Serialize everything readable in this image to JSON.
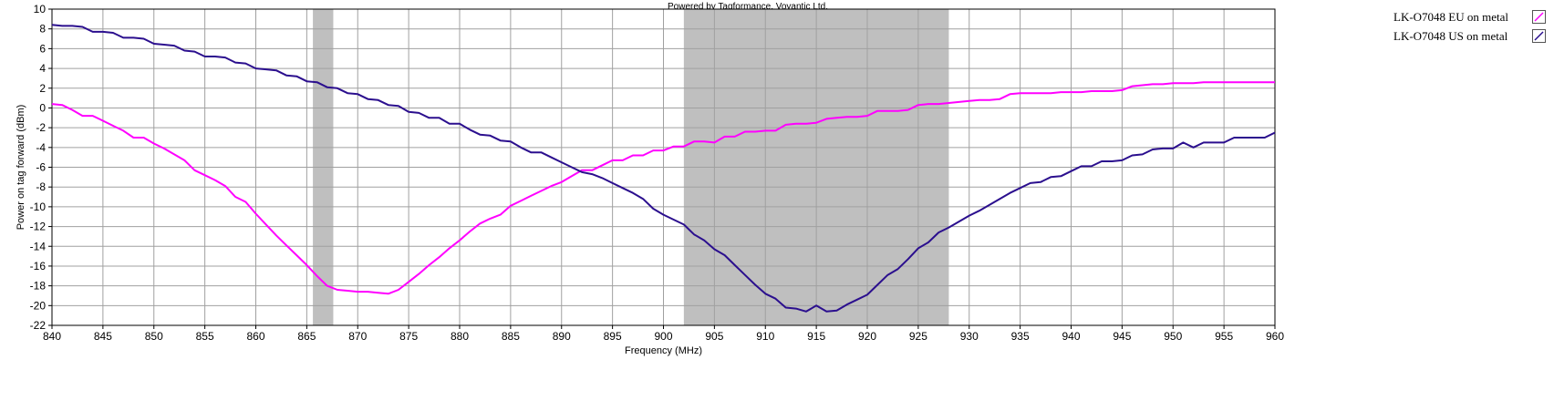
{
  "chart_data": {
    "type": "line",
    "title": "Powered by Tagformance, Voyantic Ltd.",
    "xlabel": "Frequency (MHz)",
    "ylabel": "Power on tag forward (dBm)",
    "xlim": [
      840,
      960
    ],
    "ylim": [
      -22,
      10
    ],
    "x_ticks": [
      840,
      845,
      850,
      855,
      860,
      865,
      870,
      875,
      880,
      885,
      890,
      895,
      900,
      905,
      910,
      915,
      920,
      925,
      930,
      935,
      940,
      945,
      950,
      955,
      960
    ],
    "y_ticks": [
      10,
      8,
      6,
      4,
      2,
      0,
      -2,
      -4,
      -6,
      -8,
      -10,
      -12,
      -14,
      -16,
      -18,
      -20,
      -22
    ],
    "grid": true,
    "legend_position": "right",
    "shaded_bands": [
      {
        "x_start": 865.6,
        "x_end": 867.6,
        "color": "#bfbfbf"
      },
      {
        "x_start": 902,
        "x_end": 928,
        "color": "#bfbfbf"
      }
    ],
    "series": [
      {
        "name": "LK-O7048 EU on metal",
        "color": "#ff00ff",
        "points": [
          [
            840,
            0.4
          ],
          [
            841,
            0.3
          ],
          [
            842,
            -0.2
          ],
          [
            843,
            -0.8
          ],
          [
            844,
            -0.8
          ],
          [
            845,
            -1.3
          ],
          [
            846,
            -1.8
          ],
          [
            847,
            -2.3
          ],
          [
            848,
            -3.0
          ],
          [
            849,
            -3.0
          ],
          [
            850,
            -3.6
          ],
          [
            851,
            -4.1
          ],
          [
            852,
            -4.7
          ],
          [
            853,
            -5.3
          ],
          [
            854,
            -6.3
          ],
          [
            855,
            -6.8
          ],
          [
            856,
            -7.3
          ],
          [
            857,
            -7.9
          ],
          [
            858,
            -9.0
          ],
          [
            859,
            -9.5
          ],
          [
            860,
            -10.7
          ],
          [
            861,
            -11.8
          ],
          [
            862,
            -12.9
          ],
          [
            863,
            -13.9
          ],
          [
            864,
            -14.9
          ],
          [
            865,
            -15.9
          ],
          [
            866,
            -17.0
          ],
          [
            867,
            -18.0
          ],
          [
            868,
            -18.4
          ],
          [
            869,
            -18.5
          ],
          [
            870,
            -18.6
          ],
          [
            871,
            -18.6
          ],
          [
            872,
            -18.7
          ],
          [
            873,
            -18.8
          ],
          [
            874,
            -18.4
          ],
          [
            875,
            -17.6
          ],
          [
            876,
            -16.8
          ],
          [
            877,
            -15.9
          ],
          [
            878,
            -15.1
          ],
          [
            879,
            -14.2
          ],
          [
            880,
            -13.4
          ],
          [
            881,
            -12.5
          ],
          [
            882,
            -11.7
          ],
          [
            883,
            -11.2
          ],
          [
            884,
            -10.8
          ],
          [
            885,
            -9.9
          ],
          [
            886,
            -9.4
          ],
          [
            887,
            -8.9
          ],
          [
            888,
            -8.4
          ],
          [
            889,
            -7.9
          ],
          [
            890,
            -7.5
          ],
          [
            891,
            -6.9
          ],
          [
            892,
            -6.3
          ],
          [
            893,
            -6.3
          ],
          [
            894,
            -5.8
          ],
          [
            895,
            -5.3
          ],
          [
            896,
            -5.3
          ],
          [
            897,
            -4.8
          ],
          [
            898,
            -4.8
          ],
          [
            899,
            -4.3
          ],
          [
            900,
            -4.3
          ],
          [
            901,
            -3.9
          ],
          [
            902,
            -3.9
          ],
          [
            903,
            -3.4
          ],
          [
            904,
            -3.4
          ],
          [
            905,
            -3.5
          ],
          [
            906,
            -2.9
          ],
          [
            907,
            -2.9
          ],
          [
            908,
            -2.4
          ],
          [
            909,
            -2.4
          ],
          [
            910,
            -2.3
          ],
          [
            911,
            -2.3
          ],
          [
            912,
            -1.7
          ],
          [
            913,
            -1.6
          ],
          [
            914,
            -1.6
          ],
          [
            915,
            -1.5
          ],
          [
            916,
            -1.1
          ],
          [
            917,
            -1.0
          ],
          [
            918,
            -0.9
          ],
          [
            919,
            -0.9
          ],
          [
            920,
            -0.8
          ],
          [
            921,
            -0.3
          ],
          [
            922,
            -0.3
          ],
          [
            923,
            -0.3
          ],
          [
            924,
            -0.2
          ],
          [
            925,
            0.3
          ],
          [
            926,
            0.4
          ],
          [
            927,
            0.4
          ],
          [
            928,
            0.5
          ],
          [
            929,
            0.6
          ],
          [
            930,
            0.7
          ],
          [
            931,
            0.8
          ],
          [
            932,
            0.8
          ],
          [
            933,
            0.9
          ],
          [
            934,
            1.4
          ],
          [
            935,
            1.5
          ],
          [
            936,
            1.5
          ],
          [
            937,
            1.5
          ],
          [
            938,
            1.5
          ],
          [
            939,
            1.6
          ],
          [
            940,
            1.6
          ],
          [
            941,
            1.6
          ],
          [
            942,
            1.7
          ],
          [
            943,
            1.7
          ],
          [
            944,
            1.7
          ],
          [
            945,
            1.8
          ],
          [
            946,
            2.2
          ],
          [
            947,
            2.3
          ],
          [
            948,
            2.4
          ],
          [
            949,
            2.4
          ],
          [
            950,
            2.5
          ],
          [
            951,
            2.5
          ],
          [
            952,
            2.5
          ],
          [
            953,
            2.6
          ],
          [
            954,
            2.6
          ],
          [
            955,
            2.6
          ],
          [
            956,
            2.6
          ],
          [
            957,
            2.6
          ],
          [
            958,
            2.6
          ],
          [
            959,
            2.6
          ],
          [
            960,
            2.6
          ]
        ]
      },
      {
        "name": "LK-O7048 US on metal",
        "color": "#2b0f8e",
        "points": [
          [
            840,
            8.4
          ],
          [
            841,
            8.3
          ],
          [
            842,
            8.3
          ],
          [
            843,
            8.2
          ],
          [
            844,
            7.7
          ],
          [
            845,
            7.7
          ],
          [
            846,
            7.6
          ],
          [
            847,
            7.1
          ],
          [
            848,
            7.1
          ],
          [
            849,
            7.0
          ],
          [
            850,
            6.5
          ],
          [
            851,
            6.4
          ],
          [
            852,
            6.3
          ],
          [
            853,
            5.8
          ],
          [
            854,
            5.7
          ],
          [
            855,
            5.2
          ],
          [
            856,
            5.2
          ],
          [
            857,
            5.1
          ],
          [
            858,
            4.6
          ],
          [
            859,
            4.5
          ],
          [
            860,
            4.0
          ],
          [
            861,
            3.9
          ],
          [
            862,
            3.8
          ],
          [
            863,
            3.3
          ],
          [
            864,
            3.2
          ],
          [
            865,
            2.7
          ],
          [
            866,
            2.6
          ],
          [
            867,
            2.1
          ],
          [
            868,
            2.0
          ],
          [
            869,
            1.5
          ],
          [
            870,
            1.4
          ],
          [
            871,
            0.9
          ],
          [
            872,
            0.8
          ],
          [
            873,
            0.3
          ],
          [
            874,
            0.2
          ],
          [
            875,
            -0.4
          ],
          [
            876,
            -0.5
          ],
          [
            877,
            -1.0
          ],
          [
            878,
            -1.0
          ],
          [
            879,
            -1.6
          ],
          [
            880,
            -1.6
          ],
          [
            881,
            -2.2
          ],
          [
            882,
            -2.7
          ],
          [
            883,
            -2.8
          ],
          [
            884,
            -3.3
          ],
          [
            885,
            -3.4
          ],
          [
            886,
            -4.0
          ],
          [
            887,
            -4.5
          ],
          [
            888,
            -4.5
          ],
          [
            889,
            -5.0
          ],
          [
            890,
            -5.5
          ],
          [
            891,
            -6.0
          ],
          [
            892,
            -6.5
          ],
          [
            893,
            -6.7
          ],
          [
            894,
            -7.1
          ],
          [
            895,
            -7.6
          ],
          [
            896,
            -8.1
          ],
          [
            897,
            -8.6
          ],
          [
            898,
            -9.2
          ],
          [
            899,
            -10.2
          ],
          [
            900,
            -10.8
          ],
          [
            901,
            -11.3
          ],
          [
            902,
            -11.8
          ],
          [
            903,
            -12.8
          ],
          [
            904,
            -13.4
          ],
          [
            905,
            -14.3
          ],
          [
            906,
            -14.9
          ],
          [
            907,
            -15.9
          ],
          [
            908,
            -16.9
          ],
          [
            909,
            -17.9
          ],
          [
            910,
            -18.8
          ],
          [
            911,
            -19.3
          ],
          [
            912,
            -20.2
          ],
          [
            913,
            -20.3
          ],
          [
            914,
            -20.6
          ],
          [
            915,
            -20.0
          ],
          [
            916,
            -20.6
          ],
          [
            917,
            -20.5
          ],
          [
            918,
            -19.9
          ],
          [
            919,
            -19.4
          ],
          [
            920,
            -18.9
          ],
          [
            921,
            -17.9
          ],
          [
            922,
            -16.9
          ],
          [
            923,
            -16.3
          ],
          [
            924,
            -15.3
          ],
          [
            925,
            -14.2
          ],
          [
            926,
            -13.6
          ],
          [
            927,
            -12.6
          ],
          [
            928,
            -12.1
          ],
          [
            929,
            -11.5
          ],
          [
            930,
            -10.9
          ],
          [
            931,
            -10.4
          ],
          [
            932,
            -9.8
          ],
          [
            933,
            -9.2
          ],
          [
            934,
            -8.6
          ],
          [
            935,
            -8.1
          ],
          [
            936,
            -7.6
          ],
          [
            937,
            -7.5
          ],
          [
            938,
            -7.0
          ],
          [
            939,
            -6.9
          ],
          [
            940,
            -6.4
          ],
          [
            941,
            -5.9
          ],
          [
            942,
            -5.9
          ],
          [
            943,
            -5.4
          ],
          [
            944,
            -5.4
          ],
          [
            945,
            -5.3
          ],
          [
            946,
            -4.8
          ],
          [
            947,
            -4.7
          ],
          [
            948,
            -4.2
          ],
          [
            949,
            -4.1
          ],
          [
            950,
            -4.1
          ],
          [
            951,
            -3.5
          ],
          [
            952,
            -4.0
          ],
          [
            953,
            -3.5
          ],
          [
            954,
            -3.5
          ],
          [
            955,
            -3.5
          ],
          [
            956,
            -3.0
          ],
          [
            957,
            -3.0
          ],
          [
            958,
            -3.0
          ],
          [
            959,
            -3.0
          ],
          [
            960,
            -2.5
          ]
        ]
      }
    ]
  }
}
